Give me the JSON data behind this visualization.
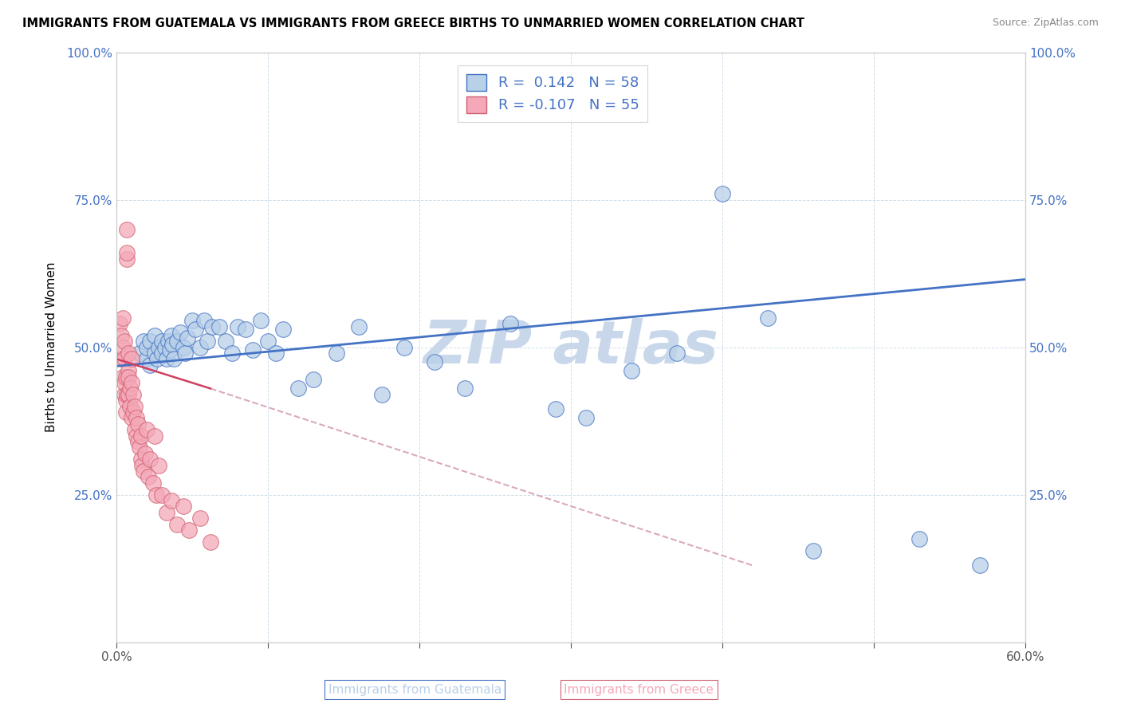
{
  "title": "IMMIGRANTS FROM GUATEMALA VS IMMIGRANTS FROM GREECE BIRTHS TO UNMARRIED WOMEN CORRELATION CHART",
  "source": "Source: ZipAtlas.com",
  "xlabel_guatemala": "Immigrants from Guatemala",
  "xlabel_greece": "Immigrants from Greece",
  "ylabel": "Births to Unmarried Women",
  "R_guatemala": 0.142,
  "N_guatemala": 58,
  "R_greece": -0.107,
  "N_greece": 55,
  "xlim": [
    0.0,
    0.6
  ],
  "ylim": [
    0.0,
    1.0
  ],
  "color_guatemala": "#b8d0e8",
  "color_greece": "#f4a8b8",
  "color_trendline_guatemala": "#4472c4",
  "color_trendline_greece": "#d04060",
  "color_trendline_greece_dash": "#d8aabb",
  "watermark_color": "#c8d8ea",
  "background_color": "#ffffff",
  "guatemala_x": [
    0.015,
    0.018,
    0.02,
    0.02,
    0.022,
    0.022,
    0.025,
    0.025,
    0.027,
    0.028,
    0.03,
    0.03,
    0.032,
    0.033,
    0.034,
    0.035,
    0.036,
    0.037,
    0.038,
    0.04,
    0.042,
    0.044,
    0.045,
    0.047,
    0.05,
    0.052,
    0.055,
    0.058,
    0.06,
    0.063,
    0.068,
    0.072,
    0.076,
    0.08,
    0.085,
    0.09,
    0.095,
    0.1,
    0.105,
    0.11,
    0.12,
    0.13,
    0.145,
    0.16,
    0.175,
    0.19,
    0.21,
    0.23,
    0.26,
    0.29,
    0.31,
    0.34,
    0.37,
    0.4,
    0.43,
    0.46,
    0.53,
    0.57
  ],
  "guatemala_y": [
    0.49,
    0.51,
    0.48,
    0.5,
    0.47,
    0.51,
    0.49,
    0.52,
    0.48,
    0.5,
    0.51,
    0.49,
    0.5,
    0.48,
    0.51,
    0.495,
    0.52,
    0.505,
    0.48,
    0.51,
    0.525,
    0.5,
    0.49,
    0.515,
    0.545,
    0.53,
    0.5,
    0.545,
    0.51,
    0.535,
    0.535,
    0.51,
    0.49,
    0.535,
    0.53,
    0.495,
    0.545,
    0.51,
    0.49,
    0.53,
    0.43,
    0.445,
    0.49,
    0.535,
    0.42,
    0.5,
    0.475,
    0.43,
    0.54,
    0.395,
    0.38,
    0.46,
    0.49,
    0.76,
    0.55,
    0.155,
    0.175,
    0.13
  ],
  "greece_x": [
    0.002,
    0.003,
    0.003,
    0.004,
    0.004,
    0.004,
    0.005,
    0.005,
    0.005,
    0.005,
    0.006,
    0.006,
    0.006,
    0.007,
    0.007,
    0.007,
    0.007,
    0.008,
    0.008,
    0.008,
    0.008,
    0.009,
    0.009,
    0.01,
    0.01,
    0.01,
    0.011,
    0.011,
    0.012,
    0.012,
    0.013,
    0.013,
    0.014,
    0.014,
    0.015,
    0.016,
    0.016,
    0.017,
    0.018,
    0.019,
    0.02,
    0.021,
    0.022,
    0.024,
    0.025,
    0.026,
    0.028,
    0.03,
    0.033,
    0.036,
    0.04,
    0.044,
    0.048,
    0.055,
    0.062
  ],
  "greece_y": [
    0.54,
    0.48,
    0.52,
    0.45,
    0.5,
    0.55,
    0.42,
    0.48,
    0.44,
    0.51,
    0.39,
    0.45,
    0.41,
    0.65,
    0.7,
    0.66,
    0.42,
    0.46,
    0.42,
    0.49,
    0.45,
    0.43,
    0.4,
    0.38,
    0.44,
    0.48,
    0.39,
    0.42,
    0.36,
    0.4,
    0.35,
    0.38,
    0.34,
    0.37,
    0.33,
    0.31,
    0.35,
    0.3,
    0.29,
    0.32,
    0.36,
    0.28,
    0.31,
    0.27,
    0.35,
    0.25,
    0.3,
    0.25,
    0.22,
    0.24,
    0.2,
    0.23,
    0.19,
    0.21,
    0.17
  ],
  "trendline_guatemala_x0": 0.0,
  "trendline_guatemala_y0": 0.468,
  "trendline_guatemala_x1": 0.6,
  "trendline_guatemala_y1": 0.615,
  "trendline_greece_solid_x0": 0.0,
  "trendline_greece_solid_y0": 0.48,
  "trendline_greece_solid_x1": 0.062,
  "trendline_greece_solid_y1": 0.43,
  "trendline_greece_dash_x0": 0.062,
  "trendline_greece_dash_y0": 0.43,
  "trendline_greece_dash_x1": 0.42,
  "trendline_greece_dash_y1": 0.13
}
